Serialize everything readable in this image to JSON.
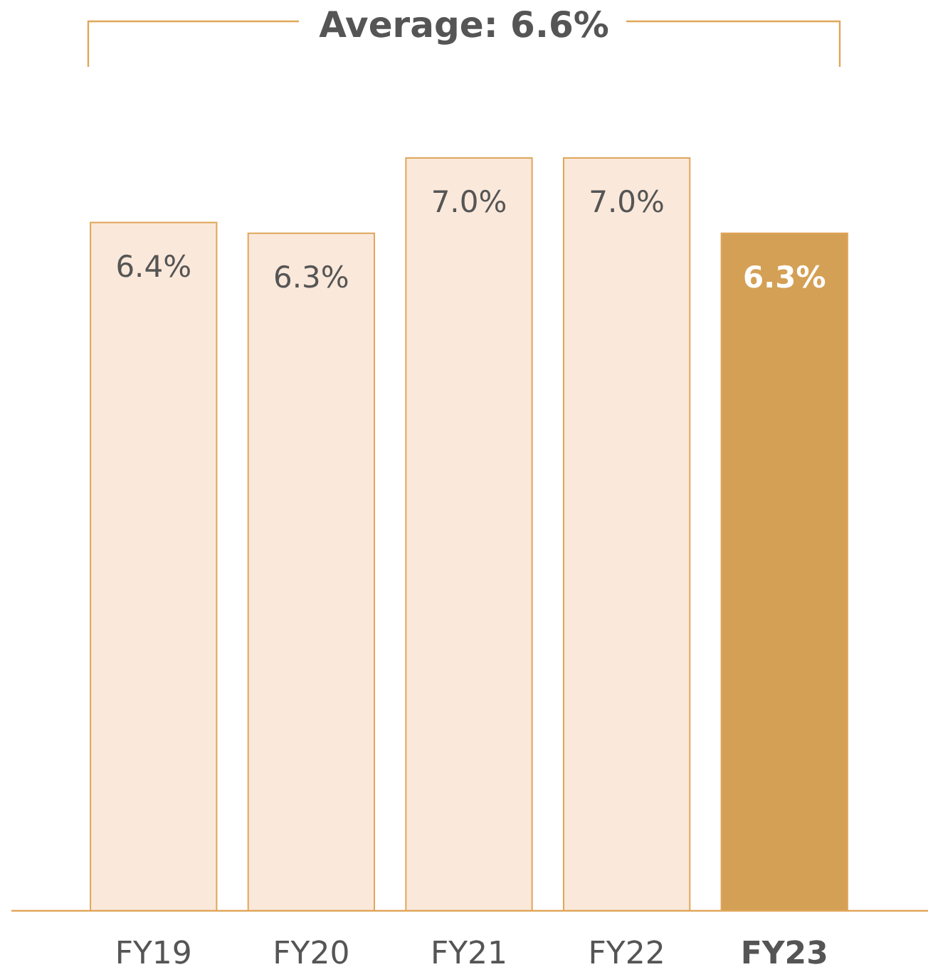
{
  "chart_data": {
    "type": "bar",
    "title": "Average: 6.6%",
    "categories": [
      "FY19",
      "FY20",
      "FY21",
      "FY22",
      "FY23"
    ],
    "values": [
      6.4,
      6.3,
      7.0,
      7.0,
      6.3
    ],
    "colors": [
      "#fae8da",
      "#fae8da",
      "#fae8da",
      "#fae8da",
      "#d4a055"
    ],
    "value_labels": [
      "6.4%",
      "6.3%",
      "7.0%",
      "7.0%",
      "6.3%"
    ],
    "data_labels": true
  }
}
